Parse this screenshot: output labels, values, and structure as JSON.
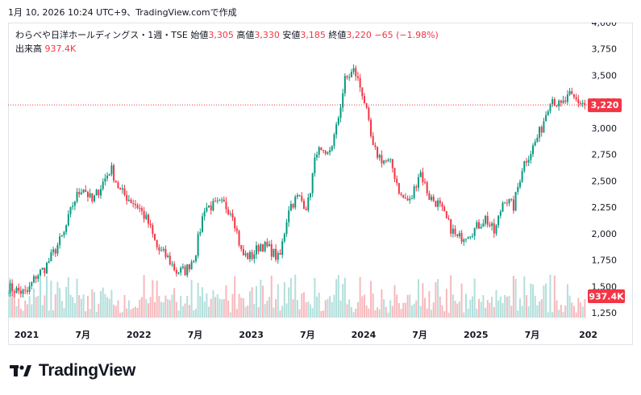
{
  "timestamp": "1月 10, 2026 10:24 UTC+9、TradingView.comで作成",
  "legend": {
    "name": "わらべや日洋ホールディングス・1週・TSE",
    "open_label": "始値",
    "open": "3,305",
    "high_label": "高値",
    "high": "3,330",
    "low_label": "安値",
    "low": "3,185",
    "close_label": "終値",
    "close": "3,220",
    "change": "−65 (−1.98%)",
    "volume_label": "出来高",
    "volume": "937.4K"
  },
  "price_badge": "3,220",
  "volume_badge": "937.4K",
  "brand": "TradingView",
  "colors": {
    "up": "#089981",
    "down": "#f23645",
    "up_vol": "#b2dfdb",
    "down_vol": "#f7b9bd",
    "text": "#131722",
    "border": "#e0e3eb"
  },
  "chart_data": {
    "type": "candlestick",
    "y_ticks": [
      "4,000",
      "3,750",
      "3,500",
      "3,250",
      "3,000",
      "2,750",
      "2,500",
      "2,250",
      "2,000",
      "1,750",
      "1,500",
      "1,250"
    ],
    "y_tick_values": [
      4000,
      3750,
      3500,
      3250,
      3000,
      2750,
      2500,
      2250,
      2000,
      1750,
      1500,
      1250
    ],
    "x_ticks": [
      "2021",
      "7月",
      "2022",
      "7月",
      "2023",
      "7月",
      "2024",
      "7月",
      "2025",
      "7月",
      "202"
    ],
    "x_tick_dates": [
      "2021-01",
      "2021-07",
      "2022-01",
      "2022-07",
      "2023-01",
      "2023-07",
      "2024-01",
      "2024-07",
      "2025-01",
      "2025-07",
      "2026-01"
    ],
    "last_close": 3220,
    "price_anchors": [
      [
        "2020-11",
        1490
      ],
      [
        "2021-01",
        1430
      ],
      [
        "2021-02",
        1600
      ],
      [
        "2021-03",
        1680
      ],
      [
        "2021-05",
        2000
      ],
      [
        "2021-06",
        2300
      ],
      [
        "2021-07",
        2450
      ],
      [
        "2021-08",
        2300
      ],
      [
        "2021-10",
        2620
      ],
      [
        "2021-11",
        2400
      ],
      [
        "2022-01",
        2250
      ],
      [
        "2022-02",
        2100
      ],
      [
        "2022-03",
        1850
      ],
      [
        "2022-04",
        1780
      ],
      [
        "2022-05",
        1640
      ],
      [
        "2022-06",
        1650
      ],
      [
        "2022-07",
        1800
      ],
      [
        "2022-08",
        2250
      ],
      [
        "2022-10",
        2280
      ],
      [
        "2022-11",
        2200
      ],
      [
        "2022-12",
        1800
      ],
      [
        "2023-01",
        1780
      ],
      [
        "2023-02",
        1900
      ],
      [
        "2023-03",
        1850
      ],
      [
        "2023-04",
        1750
      ],
      [
        "2023-05",
        2250
      ],
      [
        "2023-06",
        2350
      ],
      [
        "2023-07",
        2250
      ],
      [
        "2023-08",
        2800
      ],
      [
        "2023-09",
        2700
      ],
      [
        "2023-10",
        2950
      ],
      [
        "2023-11",
        3450
      ],
      [
        "2023-12",
        3550
      ],
      [
        "2024-01",
        3300
      ],
      [
        "2024-02",
        2800
      ],
      [
        "2024-03",
        2700
      ],
      [
        "2024-04",
        2650
      ],
      [
        "2024-05",
        2350
      ],
      [
        "2024-06",
        2300
      ],
      [
        "2024-07",
        2600
      ],
      [
        "2024-08",
        2350
      ],
      [
        "2024-09",
        2280
      ],
      [
        "2024-10",
        2100
      ],
      [
        "2024-11",
        1950
      ],
      [
        "2025-01",
        2050
      ],
      [
        "2025-02",
        2150
      ],
      [
        "2025-03",
        2000
      ],
      [
        "2025-04",
        2350
      ],
      [
        "2025-05",
        2250
      ],
      [
        "2025-06",
        2650
      ],
      [
        "2025-07",
        2800
      ],
      [
        "2025-08",
        3000
      ],
      [
        "2025-09",
        3300
      ],
      [
        "2025-10",
        3200
      ],
      [
        "2025-11",
        3300
      ],
      [
        "2025-12",
        3250
      ],
      [
        "2026-01",
        3220
      ]
    ]
  }
}
